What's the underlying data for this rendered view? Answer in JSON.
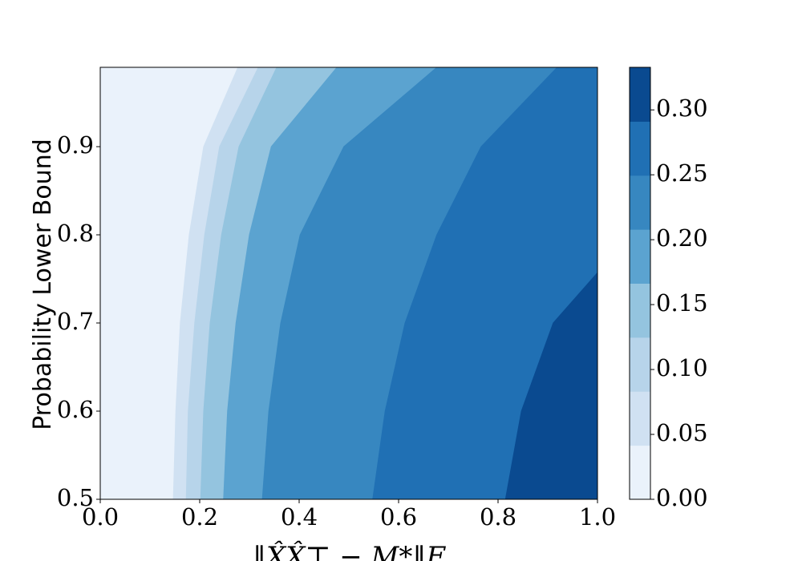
{
  "chart_data": {
    "type": "contour",
    "x_label": "‖X̂X̂⊤ − M*‖F",
    "y_label": "Probability Lower Bound",
    "xlim": [
      0,
      1
    ],
    "ylim": [
      0.5,
      0.99
    ],
    "xticks": [
      {
        "value": 0,
        "label": "0.0"
      },
      0.2,
      0.4,
      0.6,
      0.8,
      {
        "value": 1,
        "label": "1.0"
      }
    ],
    "yticks": [
      0.5,
      0.6,
      0.7,
      0.8,
      0.9
    ],
    "levels": [
      0,
      0.0416,
      0.0832,
      0.1248,
      0.1664,
      0.208,
      0.2496,
      0.2912,
      0.3328
    ],
    "colors": [
      "#eaf2fb",
      "#d0e1f2",
      "#b7d4ea",
      "#94c4df",
      "#5ba3d0",
      "#3787c0",
      "#2070b4",
      "#0a4a90"
    ],
    "colorbar_ticks": [
      {
        "value": 0,
        "label": "0.00"
      },
      {
        "value": 0.05,
        "label": "0.05"
      },
      {
        "value": 0.1,
        "label": "0.10"
      },
      {
        "value": 0.15,
        "label": "0.15"
      },
      {
        "value": 0.2,
        "label": "0.20"
      },
      {
        "value": 0.25,
        "label": "0.25"
      },
      {
        "value": 0.3,
        "label": "0.30"
      }
    ],
    "boundaries": [
      {
        "x": [
          0.147,
          0.152,
          0.161,
          0.179,
          0.208,
          0.277
        ],
        "y": [
          0.5,
          0.6,
          0.7,
          0.8,
          0.9,
          0.99
        ]
      },
      {
        "x": [
          0.173,
          0.177,
          0.19,
          0.21,
          0.24,
          0.318
        ],
        "y": [
          0.5,
          0.6,
          0.7,
          0.8,
          0.9,
          0.99
        ]
      },
      {
        "x": [
          0.202,
          0.208,
          0.221,
          0.244,
          0.279,
          0.355
        ],
        "y": [
          0.5,
          0.6,
          0.7,
          0.8,
          0.9,
          0.99
        ]
      },
      {
        "x": [
          0.248,
          0.256,
          0.273,
          0.3,
          0.344,
          0.476
        ],
        "y": [
          0.5,
          0.6,
          0.7,
          0.8,
          0.9,
          0.99
        ]
      },
      {
        "x": [
          0.326,
          0.339,
          0.363,
          0.402,
          0.49,
          0.677
        ],
        "y": [
          0.5,
          0.6,
          0.7,
          0.8,
          0.9,
          0.99
        ]
      },
      {
        "x": [
          0.548,
          0.573,
          0.613,
          0.677,
          0.766,
          0.919
        ],
        "y": [
          0.5,
          0.6,
          0.7,
          0.8,
          0.9,
          0.99
        ]
      },
      {
        "x": [
          0.815,
          0.847,
          0.911,
          1
        ],
        "y": [
          0.5,
          0.6,
          0.7,
          0.757
        ]
      }
    ]
  }
}
